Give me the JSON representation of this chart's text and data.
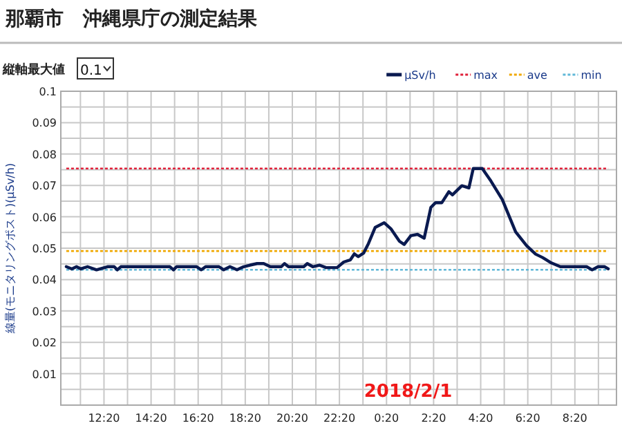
{
  "chart_data": {
    "type": "line",
    "title": "那覇市　沖縄県庁の測定結果",
    "ylabel": "線量(モニタリングポスト)(μSv/h)",
    "annotations": [
      "縦軸最大値",
      "0.1",
      "2018/2/1"
    ],
    "xlim": [
      "2018-01-31T10:30",
      "2018-02-01T10:06"
    ],
    "ylim": [
      0,
      0.1
    ],
    "xticks": [
      {
        "value": "2018-01-31T11:20",
        "label": null
      },
      {
        "value": "2018-01-31T12:20",
        "label": "12:20"
      },
      {
        "value": "2018-01-31T13:20",
        "label": null
      },
      {
        "value": "2018-01-31T14:20",
        "label": "14:20"
      },
      {
        "value": "2018-01-31T15:20",
        "label": null
      },
      {
        "value": "2018-01-31T16:20",
        "label": "16:20"
      },
      {
        "value": "2018-01-31T17:20",
        "label": null
      },
      {
        "value": "2018-01-31T18:20",
        "label": "18:20"
      },
      {
        "value": "2018-01-31T19:20",
        "label": null
      },
      {
        "value": "2018-01-31T20:20",
        "label": "20:20"
      },
      {
        "value": "2018-01-31T21:20",
        "label": null
      },
      {
        "value": "2018-01-31T22:20",
        "label": "22:20"
      },
      {
        "value": "2018-01-31T23:20",
        "label": null
      },
      {
        "value": "2018-02-01T00:20",
        "label": "0:20"
      },
      {
        "value": "2018-02-01T01:20",
        "label": null
      },
      {
        "value": "2018-02-01T02:20",
        "label": "2:20"
      },
      {
        "value": "2018-02-01T03:20",
        "label": null
      },
      {
        "value": "2018-02-01T04:20",
        "label": "4:20"
      },
      {
        "value": "2018-02-01T05:20",
        "label": null
      },
      {
        "value": "2018-02-01T06:20",
        "label": "6:20"
      },
      {
        "value": "2018-02-01T07:20",
        "label": null
      },
      {
        "value": "2018-02-01T08:20",
        "label": "8:20"
      },
      {
        "value": "2018-02-01T09:20",
        "label": null
      }
    ],
    "yticks": [
      {
        "value": 0,
        "label": null
      },
      {
        "value": 0.005,
        "label": null
      },
      0.01,
      {
        "value": 0.015,
        "label": null
      },
      0.02,
      {
        "value": 0.025,
        "label": null
      },
      0.03,
      {
        "value": 0.035,
        "label": null
      },
      0.04,
      {
        "value": 0.045,
        "label": null
      },
      0.05,
      {
        "value": 0.055,
        "label": null
      },
      0.06,
      {
        "value": 0.065,
        "label": null
      },
      0.07,
      {
        "value": 0.075,
        "label": null
      },
      0.08,
      {
        "value": 0.085,
        "label": null
      },
      0.09,
      {
        "value": 0.095,
        "label": null
      },
      0.1
    ],
    "grid": true,
    "legend": "top right",
    "marker": "none",
    "series": [
      {
        "name": "μSv/h",
        "color": "#0a1a50",
        "line_style": "solid",
        "x": [
          "2018-01-31T10:44",
          "2018-01-31T10:58",
          "2018-01-31T11:10",
          "2018-01-31T11:21",
          "2018-01-31T11:38",
          "2018-01-31T12:01",
          "2018-01-31T12:29",
          "2018-01-31T12:46",
          "2018-01-31T12:54",
          "2018-01-31T13:03",
          "2018-01-31T15:08",
          "2018-01-31T15:17",
          "2018-01-31T15:25",
          "2018-01-31T16:16",
          "2018-01-31T16:28",
          "2018-01-31T16:39",
          "2018-01-31T17:13",
          "2018-01-31T17:25",
          "2018-01-31T17:41",
          "2018-01-31T17:59",
          "2018-01-31T18:16",
          "2018-01-31T18:32",
          "2018-01-31T18:50",
          "2018-01-31T19:07",
          "2018-01-31T19:24",
          "2018-01-31T19:52",
          "2018-01-31T20:00",
          "2018-01-31T20:10",
          "2018-01-31T20:49",
          "2018-01-31T20:58",
          "2018-01-31T21:12",
          "2018-01-31T21:29",
          "2018-01-31T21:46",
          "2018-01-31T22:14",
          "2018-01-31T22:31",
          "2018-01-31T22:48",
          "2018-01-31T22:58",
          "2018-01-31T23:08",
          "2018-01-31T23:22",
          "2018-01-31T23:34",
          "2018-01-31T23:51",
          "2018-02-01T00:14",
          "2018-02-01T00:31",
          "2018-02-01T00:53",
          "2018-02-01T01:05",
          "2018-02-01T01:22",
          "2018-02-01T01:39",
          "2018-02-01T01:56",
          "2018-02-01T02:13",
          "2018-02-01T02:25",
          "2018-02-01T02:41",
          "2018-02-01T02:59",
          "2018-02-01T03:08",
          "2018-02-01T03:32",
          "2018-02-01T03:50",
          "2018-02-01T04:01",
          "2018-02-01T04:24",
          "2018-02-01T04:46",
          "2018-02-01T05:15",
          "2018-02-01T05:49",
          "2018-02-01T06:17",
          "2018-02-01T06:40",
          "2018-02-01T06:58",
          "2018-02-01T07:20",
          "2018-02-01T07:43",
          "2018-02-01T08:50",
          "2018-02-01T09:04",
          "2018-02-01T09:19",
          "2018-02-01T09:36",
          "2018-02-01T09:45"
        ],
        "values": [
          0.0441,
          0.0434,
          0.0441,
          0.0434,
          0.0441,
          0.0431,
          0.0441,
          0.0441,
          0.0431,
          0.0441,
          0.0441,
          0.0431,
          0.0441,
          0.0441,
          0.0431,
          0.0441,
          0.0441,
          0.0431,
          0.0441,
          0.0431,
          0.0441,
          0.0446,
          0.0451,
          0.0451,
          0.0441,
          0.0441,
          0.0451,
          0.0441,
          0.0441,
          0.0451,
          0.0441,
          0.0446,
          0.0438,
          0.0438,
          0.0456,
          0.0463,
          0.0482,
          0.0473,
          0.0485,
          0.0515,
          0.0566,
          0.0581,
          0.0562,
          0.0522,
          0.0512,
          0.054,
          0.0544,
          0.0532,
          0.063,
          0.0645,
          0.0645,
          0.068,
          0.067,
          0.0699,
          0.0692,
          0.0754,
          0.0754,
          0.0714,
          0.0655,
          0.0552,
          0.0508,
          0.0481,
          0.047,
          0.0453,
          0.0441,
          0.0441,
          0.0431,
          0.0441,
          0.0441,
          0.0434
        ]
      },
      {
        "name": "max",
        "color": "#e0203a",
        "line_style": "dotted",
        "x": [
          "2018-01-31T10:44",
          "2018-02-01T09:45"
        ],
        "values": [
          0.0754,
          0.0754
        ]
      },
      {
        "name": "ave",
        "color": "#f0a800",
        "line_style": "dotted",
        "x": [
          "2018-01-31T10:44",
          "2018-02-01T09:45"
        ],
        "values": [
          0.0491,
          0.0491
        ]
      },
      {
        "name": "min",
        "color": "#60b8d8",
        "line_style": "dotted",
        "x": [
          "2018-01-31T10:44",
          "2018-02-01T09:45"
        ],
        "values": [
          0.0431,
          0.0431
        ]
      }
    ]
  }
}
